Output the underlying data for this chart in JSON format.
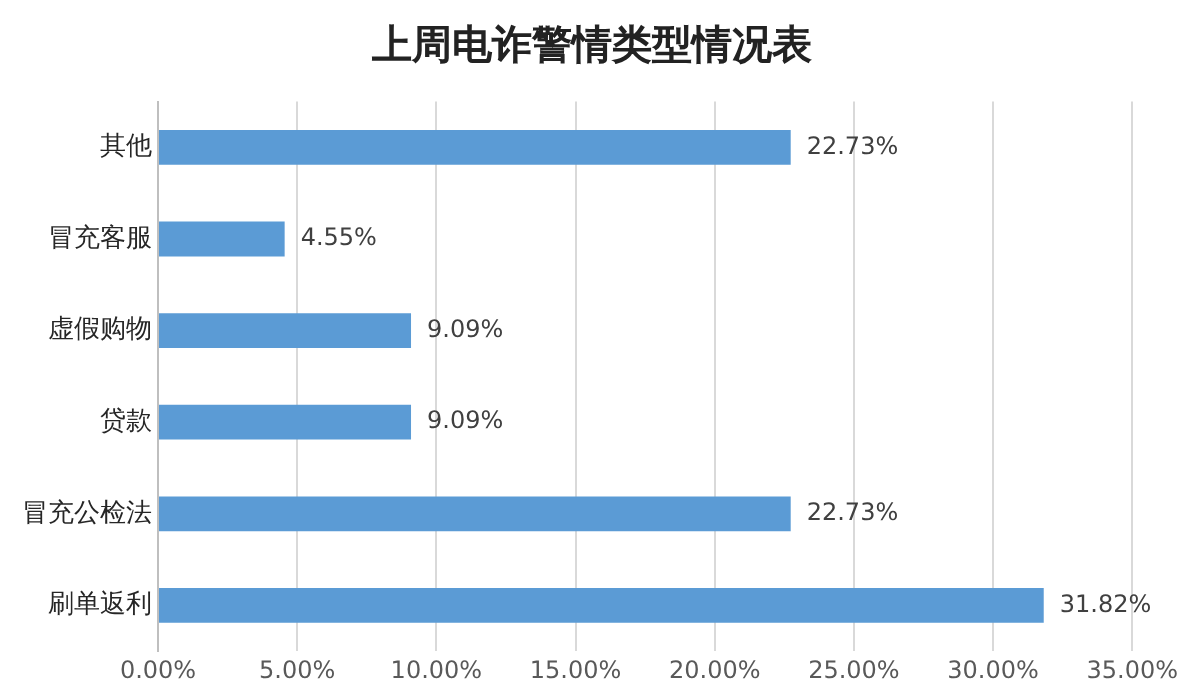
{
  "chart_data": {
    "type": "bar",
    "orientation": "horizontal",
    "title": "上周电诈警情类型情况表",
    "categories": [
      "其他",
      "冒充客服",
      "虚假购物",
      "贷款",
      "冒充公检法",
      "刷单返利"
    ],
    "values": [
      22.73,
      4.55,
      9.09,
      9.09,
      22.73,
      31.82
    ],
    "value_labels": [
      "22.73%",
      "4.55%",
      "9.09%",
      "9.09%",
      "22.73%",
      "31.82%"
    ],
    "color": "#5b9bd5",
    "xlim": [
      0,
      35
    ],
    "xticks": [
      {
        "value": 0,
        "label": "0.00%"
      },
      {
        "value": 5,
        "label": "5.00%"
      },
      {
        "value": 10,
        "label": "10.00%"
      },
      {
        "value": 15,
        "label": "15.00%"
      },
      {
        "value": 20,
        "label": "20.00%"
      },
      {
        "value": 25,
        "label": "25.00%"
      },
      {
        "value": 30,
        "label": "30.00%"
      },
      {
        "value": 35,
        "label": "35.00%"
      }
    ],
    "grid": "x",
    "legend": false
  }
}
